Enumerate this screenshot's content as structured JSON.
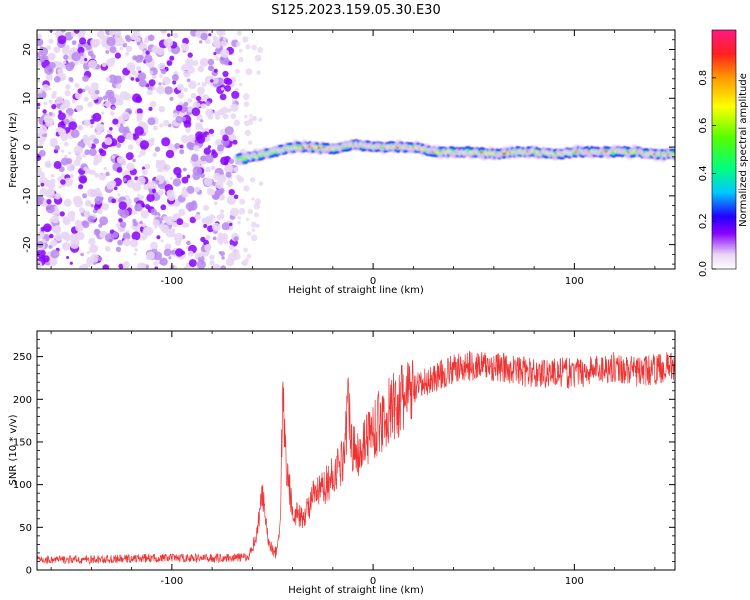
{
  "title": "S125.2023.159.05.30.E30",
  "chart_data": [
    {
      "type": "heatmap",
      "xlabel": "Height of straight line (km)",
      "ylabel": "Frequency (Hz)",
      "xlim": [
        -167,
        150
      ],
      "ylim": [
        -25,
        24
      ],
      "xticks": [
        -100,
        0,
        100
      ],
      "yticks": [
        -20,
        -10,
        0,
        10,
        20
      ],
      "grid": false,
      "noise_region_x": [
        -167,
        -68
      ],
      "signal_trace": {
        "x": [
          -68,
          -60,
          -50,
          -40,
          -30,
          -20,
          -10,
          0,
          10,
          20,
          30,
          40,
          50,
          60,
          70,
          80,
          90,
          100,
          110,
          120,
          130,
          140,
          150
        ],
        "frequency": [
          -2.5,
          -2,
          -1,
          0,
          0,
          -0.5,
          0.5,
          0,
          0,
          0,
          -1,
          -1,
          -1,
          -1.5,
          -1,
          -1,
          -1.5,
          -1,
          -1,
          -1,
          -1,
          -1.5,
          -1.5
        ]
      },
      "colorbar": {
        "label": "Normalized spectral amplitude",
        "range": [
          0.0,
          1.0
        ],
        "ticks": [
          "0.0",
          "0.2",
          "0.4",
          "0.6",
          "0.8"
        ],
        "colormap": [
          "#ffffff",
          "#e8d6f5",
          "#8800ff",
          "#2200ff",
          "#00c8ff",
          "#00ff7f",
          "#55ff00",
          "#ffff00",
          "#ff9900",
          "#ff2020",
          "#ff1a80"
        ]
      }
    },
    {
      "type": "line",
      "xlabel": "Height of straight line (km)",
      "ylabel": "SNR (10 * v/v)",
      "xlim": [
        -167,
        150
      ],
      "ylim": [
        0,
        280
      ],
      "xticks": [
        -100,
        0,
        100
      ],
      "yticks": [
        0,
        50,
        100,
        150,
        200,
        250
      ],
      "grid": false,
      "series": [
        {
          "color": "#ee3333",
          "x": [
            -167,
            -140,
            -110,
            -80,
            -62,
            -58,
            -55,
            -52,
            -48,
            -46,
            -45,
            -43,
            -40,
            -35,
            -30,
            -25,
            -20,
            -15,
            -12,
            -10,
            -8,
            -5,
            0,
            10,
            20,
            30,
            40,
            50,
            60,
            70,
            80,
            90,
            100,
            110,
            120,
            130,
            140,
            150
          ],
          "y": [
            12,
            12,
            14,
            14,
            15,
            40,
            90,
            30,
            20,
            60,
            210,
            120,
            70,
            60,
            85,
            95,
            110,
            130,
            200,
            140,
            135,
            150,
            165,
            190,
            210,
            225,
            235,
            240,
            238,
            235,
            230,
            232,
            230,
            235,
            238,
            232,
            235,
            240
          ]
        }
      ]
    }
  ]
}
